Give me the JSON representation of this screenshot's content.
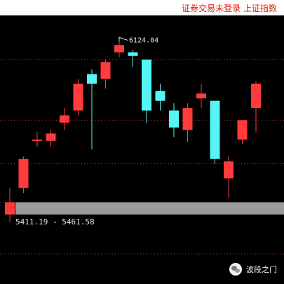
{
  "header": {
    "title": "证券交易未登录  上证指数"
  },
  "chart_data": {
    "type": "candlestick",
    "ylim": [
      5350,
      6180
    ],
    "gridlines": [
      6050,
      5800,
      5620,
      5460
    ],
    "candles": [
      {
        "open": 5411.19,
        "close": 5461.58,
        "high": 5520,
        "low": 5380,
        "color": "red"
      },
      {
        "open": 5520,
        "close": 5640,
        "high": 5650,
        "low": 5500,
        "color": "red"
      },
      {
        "open": 5720,
        "close": 5720,
        "high": 5750,
        "low": 5690,
        "color": "red"
      },
      {
        "open": 5715,
        "close": 5745,
        "high": 5760,
        "low": 5690,
        "color": "red"
      },
      {
        "open": 5790,
        "close": 5820,
        "high": 5850,
        "low": 5760,
        "color": "red"
      },
      {
        "open": 5840,
        "close": 5950,
        "high": 5970,
        "low": 5820,
        "color": "red"
      },
      {
        "open": 5990,
        "close": 5950,
        "high": 6010,
        "low": 5680,
        "color": "cyan"
      },
      {
        "open": 5970,
        "close": 6040,
        "high": 6050,
        "low": 5930,
        "color": "red"
      },
      {
        "open": 6080,
        "close": 6110,
        "high": 6124.04,
        "low": 6060,
        "color": "red"
      },
      {
        "open": 6080,
        "close": 6065,
        "high": 6090,
        "low": 6020,
        "color": "cyan"
      },
      {
        "open": 6050,
        "close": 5840,
        "high": 6050,
        "low": 5790,
        "color": "cyan"
      },
      {
        "open": 5920,
        "close": 5880,
        "high": 5950,
        "low": 5840,
        "color": "cyan"
      },
      {
        "open": 5840,
        "close": 5770,
        "high": 5870,
        "low": 5730,
        "color": "cyan"
      },
      {
        "open": 5760,
        "close": 5850,
        "high": 5870,
        "low": 5710,
        "color": "red"
      },
      {
        "open": 5890,
        "close": 5910,
        "high": 5950,
        "low": 5850,
        "color": "red"
      },
      {
        "open": 5880,
        "close": 5640,
        "high": 5880,
        "low": 5620,
        "color": "cyan"
      },
      {
        "open": 5560,
        "close": 5630,
        "high": 5650,
        "low": 5480,
        "color": "red"
      },
      {
        "open": 5720,
        "close": 5800,
        "high": 5800,
        "low": 5700,
        "color": "red"
      },
      {
        "open": 5850,
        "close": 5950,
        "high": 5960,
        "low": 5750,
        "color": "red"
      }
    ],
    "annotations": {
      "high_label": "6124.04",
      "range_label": "5411.19 - 5461.58",
      "range_low": 5411.19,
      "range_high": 5461.58
    },
    "colors": {
      "up": "#ff3b3b",
      "down": "#55f5f5",
      "grid": "#c0392b",
      "band": "#9a9a9a"
    }
  },
  "watermark": {
    "text": "波段之门",
    "icon": "wechat-icon"
  }
}
